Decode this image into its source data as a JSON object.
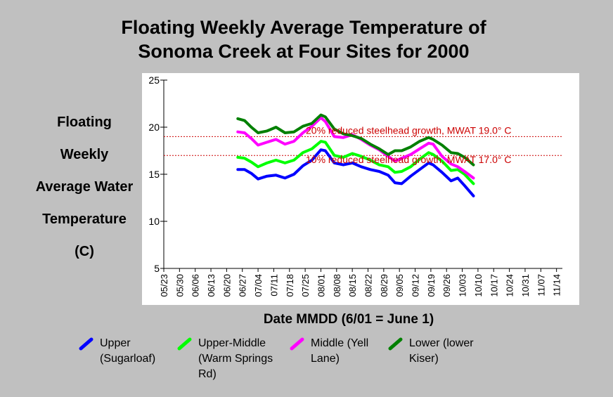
{
  "chart_data": {
    "type": "line",
    "title": [
      "Floating Weekly Average Temperature of",
      "Sonoma Creek at Four Sites for 2000"
    ],
    "xlabel": "Date MMDD (6/01 = June 1)",
    "ylabel": [
      "Floating",
      "Weekly",
      "Average Water",
      "Temperature",
      "(C)"
    ],
    "ylim": [
      5,
      25
    ],
    "yticks": [
      5,
      10,
      15,
      20,
      25
    ],
    "xlim": [
      "05/23",
      "11/21"
    ],
    "xticks": [
      "05/23",
      "05/30",
      "06/06",
      "06/13",
      "06/20",
      "06/27",
      "07/04",
      "07/11",
      "07/18",
      "07/25",
      "08/01",
      "08/08",
      "08/15",
      "08/22",
      "08/29",
      "09/05",
      "09/12",
      "09/19",
      "09/26",
      "10/03",
      "10/10",
      "10/17",
      "10/24",
      "10/31",
      "11/07",
      "11/14"
    ],
    "reference_lines": [
      {
        "y": 19.0,
        "label": "20% reduced steelhead growth, MWAT 19.0° C",
        "color": "#cc0000"
      },
      {
        "y": 17.0,
        "label": "10% reduced steelhead growth, MWAT 17.0° C",
        "color": "#cc0000"
      }
    ],
    "series": [
      {
        "name": "Upper (Sugarloaf)",
        "color": "#0000ff",
        "x": [
          "06/25",
          "06/28",
          "07/01",
          "07/04",
          "07/08",
          "07/12",
          "07/16",
          "07/20",
          "07/24",
          "07/28",
          "08/01",
          "08/03",
          "08/07",
          "08/11",
          "08/15",
          "08/19",
          "08/23",
          "08/27",
          "08/31",
          "09/03",
          "09/06",
          "09/10",
          "09/14",
          "09/18",
          "09/20",
          "09/24",
          "09/28",
          "10/01",
          "10/04",
          "10/08"
        ],
        "values": [
          15.5,
          15.5,
          15.1,
          14.5,
          14.8,
          14.9,
          14.6,
          15.0,
          15.9,
          16.5,
          17.6,
          17.5,
          16.2,
          16.0,
          16.2,
          15.8,
          15.5,
          15.3,
          14.9,
          14.1,
          14.0,
          14.8,
          15.5,
          16.2,
          16.0,
          15.2,
          14.3,
          14.6,
          13.8,
          12.7
        ]
      },
      {
        "name": "Upper-Middle (Warm Springs Rd)",
        "color": "#00ff00",
        "x": [
          "06/25",
          "06/28",
          "07/01",
          "07/04",
          "07/08",
          "07/12",
          "07/16",
          "07/20",
          "07/24",
          "07/28",
          "08/01",
          "08/03",
          "08/07",
          "08/11",
          "08/15",
          "08/19",
          "08/23",
          "08/27",
          "08/31",
          "09/03",
          "09/06",
          "09/10",
          "09/14",
          "09/18",
          "09/20",
          "09/24",
          "09/28",
          "10/01",
          "10/04",
          "10/08"
        ],
        "values": [
          16.8,
          16.7,
          16.3,
          15.8,
          16.2,
          16.5,
          16.2,
          16.5,
          17.3,
          17.7,
          18.5,
          18.4,
          17.0,
          16.8,
          17.2,
          16.9,
          16.5,
          16.0,
          15.8,
          15.2,
          15.3,
          15.8,
          16.6,
          17.3,
          17.1,
          16.4,
          15.4,
          15.5,
          15.0,
          14.0
        ]
      },
      {
        "name": "Middle (Yell Lane)",
        "color": "#ff00ff",
        "x": [
          "06/25",
          "06/28",
          "07/01",
          "07/04",
          "07/08",
          "07/12",
          "07/16",
          "07/20",
          "07/24",
          "07/28",
          "08/01",
          "08/03",
          "08/07",
          "08/11",
          "08/15",
          "08/19",
          "08/23",
          "08/27",
          "08/31",
          "09/03",
          "09/06",
          "09/10",
          "09/14",
          "09/18",
          "09/20",
          "09/24",
          "09/28",
          "10/01",
          "10/04",
          "10/08"
        ],
        "values": [
          19.5,
          19.4,
          18.8,
          18.1,
          18.4,
          18.7,
          18.2,
          18.5,
          19.4,
          20.1,
          21.0,
          20.6,
          19.0,
          18.9,
          19.2,
          18.7,
          18.1,
          17.6,
          16.9,
          16.4,
          16.7,
          17.1,
          17.7,
          18.3,
          18.2,
          16.9,
          16.1,
          15.8,
          15.3,
          14.6
        ]
      },
      {
        "name": "Lower (lower Kiser)",
        "color": "#008000",
        "x": [
          "06/25",
          "06/28",
          "07/01",
          "07/04",
          "07/08",
          "07/12",
          "07/16",
          "07/20",
          "07/24",
          "07/28",
          "08/01",
          "08/03",
          "08/07",
          "08/11",
          "08/15",
          "08/19",
          "08/23",
          "08/27",
          "08/31",
          "09/03",
          "09/06",
          "09/10",
          "09/14",
          "09/18",
          "09/20",
          "09/24",
          "09/28",
          "10/01",
          "10/04",
          "10/08"
        ],
        "values": [
          20.9,
          20.7,
          20.0,
          19.4,
          19.6,
          20.0,
          19.4,
          19.5,
          20.1,
          20.4,
          21.3,
          21.1,
          19.8,
          19.3,
          19.1,
          18.8,
          18.2,
          17.7,
          17.1,
          17.5,
          17.5,
          17.9,
          18.5,
          18.9,
          18.7,
          18.1,
          17.3,
          17.2,
          16.8,
          16.0
        ]
      }
    ],
    "legend_position": "bottom",
    "grid": false,
    "plot_background": "#ffffff"
  },
  "legend": {
    "items": [
      {
        "lines": [
          "Upper",
          "(Sugarloaf)"
        ],
        "color": "#0000ff"
      },
      {
        "lines": [
          "Upper-Middle",
          "(Warm Springs",
          "Rd)"
        ],
        "color": "#00ff00"
      },
      {
        "lines": [
          "Middle (Yell",
          "Lane)"
        ],
        "color": "#ff00ff"
      },
      {
        "lines": [
          "Lower (lower",
          "Kiser)"
        ],
        "color": "#008000"
      }
    ]
  }
}
